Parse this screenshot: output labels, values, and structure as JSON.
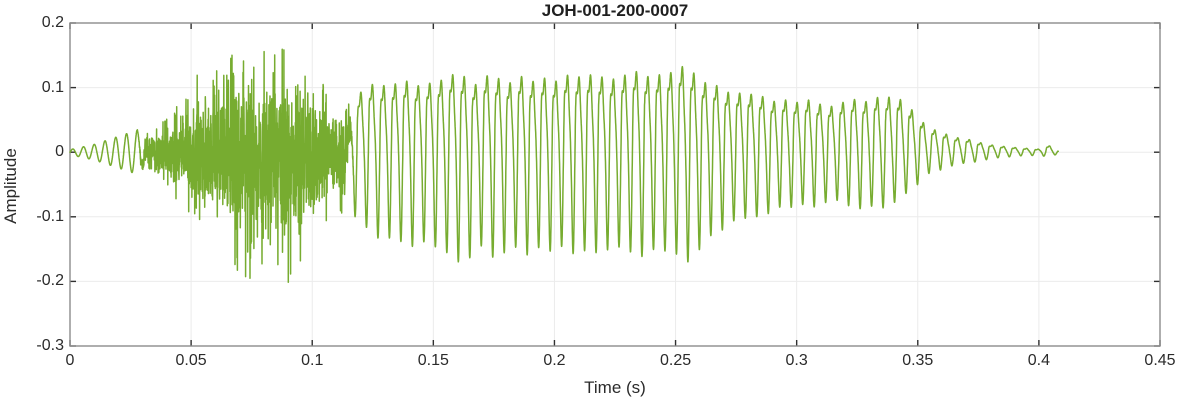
{
  "chart_data": {
    "type": "line",
    "title": "JOH-001-200-0007",
    "xlabel": "Time (s)",
    "ylabel": "Amplitude",
    "xlim": [
      0,
      0.45
    ],
    "ylim": [
      -0.3,
      0.2
    ],
    "xticks": [
      0,
      0.05,
      0.1,
      0.15,
      0.2,
      0.25,
      0.3,
      0.35,
      0.4,
      0.45
    ],
    "xtick_labels": [
      "0",
      "0.05",
      "0.1",
      "0.15",
      "0.2",
      "0.25",
      "0.3",
      "0.35",
      "0.4",
      "0.45"
    ],
    "yticks": [
      0.2,
      0.1,
      0,
      -0.1,
      -0.2,
      -0.3
    ],
    "ytick_labels": [
      "0.2",
      "0.1",
      "0",
      "-0.1",
      "-0.2",
      "-0.3"
    ],
    "grid": true,
    "legend": null,
    "line_color": "#77AC30",
    "axis_color": "#8c8c8c",
    "grid_color": "#ebebeb",
    "tick_color": "#303030",
    "text_color": "#2b2b2b",
    "title_color": "#1f1f1f",
    "background_color": "#ffffff",
    "signal": {
      "description": "Speech waveform: quiet sinusoidal onset 0-0.03 s, unvoiced noise burst 0.03-0.115 s peaking near +0.2/-0.22, quasi-periodic voiced segment 0.115-0.355 s (~211 Hz) with peaks near +0.13/-0.17, decaying tail ending near t = 0.408 s",
      "sample_rate": 16000,
      "t_end": 0.408,
      "noise_seed": 7,
      "segments": [
        {
          "kind": "tone",
          "t0": 0.0,
          "t1": 0.031,
          "f0": 225
        },
        {
          "kind": "noise",
          "t0": 0.029,
          "t1": 0.118
        },
        {
          "kind": "voiced",
          "t0": 0.114,
          "t1": 0.408,
          "f0": 211
        }
      ],
      "envelope": [
        [
          0.0,
          0.004,
          0.004
        ],
        [
          0.01,
          0.012,
          0.012
        ],
        [
          0.018,
          0.022,
          0.022
        ],
        [
          0.026,
          0.032,
          0.032
        ],
        [
          0.032,
          0.044,
          0.042
        ],
        [
          0.04,
          0.072,
          0.066
        ],
        [
          0.05,
          0.108,
          0.1
        ],
        [
          0.058,
          0.15,
          0.135
        ],
        [
          0.066,
          0.168,
          0.178
        ],
        [
          0.074,
          0.178,
          0.196
        ],
        [
          0.082,
          0.192,
          0.21
        ],
        [
          0.087,
          0.2,
          0.222
        ],
        [
          0.093,
          0.168,
          0.182
        ],
        [
          0.1,
          0.138,
          0.152
        ],
        [
          0.108,
          0.108,
          0.112
        ],
        [
          0.115,
          0.096,
          0.112
        ],
        [
          0.125,
          0.104,
          0.13
        ],
        [
          0.14,
          0.108,
          0.142
        ],
        [
          0.16,
          0.112,
          0.158
        ],
        [
          0.18,
          0.108,
          0.148
        ],
        [
          0.2,
          0.113,
          0.15
        ],
        [
          0.22,
          0.118,
          0.152
        ],
        [
          0.24,
          0.128,
          0.164
        ],
        [
          0.255,
          0.122,
          0.158
        ],
        [
          0.268,
          0.103,
          0.125
        ],
        [
          0.282,
          0.082,
          0.094
        ],
        [
          0.3,
          0.076,
          0.08
        ],
        [
          0.318,
          0.074,
          0.078
        ],
        [
          0.333,
          0.084,
          0.088
        ],
        [
          0.341,
          0.094,
          0.082
        ],
        [
          0.349,
          0.062,
          0.055
        ],
        [
          0.356,
          0.034,
          0.03
        ],
        [
          0.365,
          0.024,
          0.02
        ],
        [
          0.374,
          0.016,
          0.014
        ],
        [
          0.383,
          0.01,
          0.009
        ],
        [
          0.392,
          0.007,
          0.006
        ],
        [
          0.4,
          0.005,
          0.005
        ],
        [
          0.404,
          0.01,
          0.008
        ],
        [
          0.408,
          0.002,
          0.002
        ]
      ]
    }
  }
}
